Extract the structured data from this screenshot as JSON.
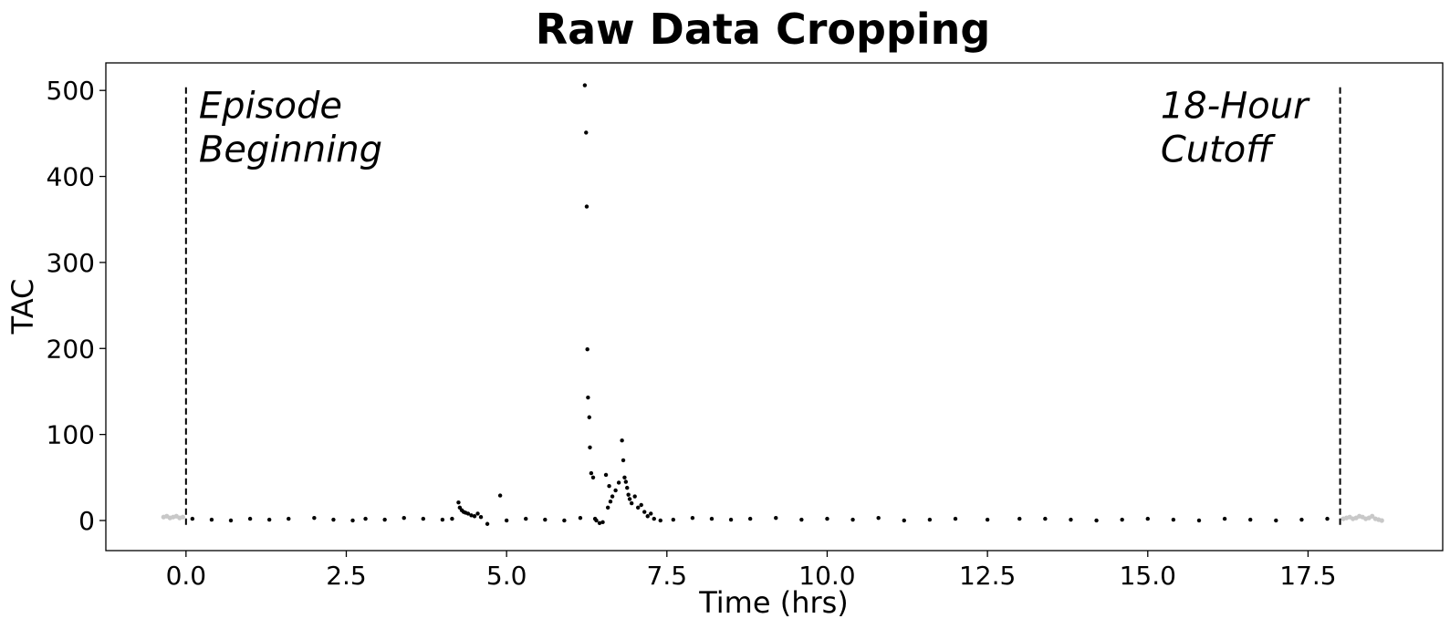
{
  "chart_data": {
    "type": "scatter",
    "title": "Raw Data Cropping",
    "xlabel": "Time (hrs)",
    "ylabel": "TAC",
    "xlim": [
      -1.25,
      19.6
    ],
    "ylim": [
      -35,
      532
    ],
    "xticks": [
      0.0,
      2.5,
      5.0,
      7.5,
      10.0,
      12.5,
      15.0,
      17.5
    ],
    "xtick_labels": [
      "0.0",
      "2.5",
      "5.0",
      "7.5",
      "10.0",
      "12.5",
      "15.0",
      "17.5"
    ],
    "yticks": [
      0,
      100,
      200,
      300,
      400,
      500
    ],
    "ytick_labels": [
      "0",
      "100",
      "200",
      "300",
      "400",
      "500"
    ],
    "grid": false,
    "colors": {
      "kept": "#000000",
      "cropped": "#c8c8c8",
      "cutoff_line": "#000000"
    },
    "vertical_lines": [
      {
        "x": 0.0,
        "y_range": [
          -5,
          505
        ],
        "style": "dashed"
      },
      {
        "x": 18.0,
        "y_range": [
          -5,
          505
        ],
        "style": "dashed"
      }
    ],
    "annotations": [
      {
        "lines": [
          "Episode",
          "Beginning"
        ],
        "x": 0.2,
        "y": 468
      },
      {
        "lines": [
          "18-Hour",
          "Cutoff"
        ],
        "x": 15.2,
        "y": 468
      }
    ],
    "series": [
      {
        "role": "cropped",
        "x": [
          -0.35,
          -0.3,
          -0.25,
          -0.2,
          -0.15,
          -0.1,
          -0.05,
          18.05,
          18.1,
          18.15,
          18.2,
          18.25,
          18.3,
          18.35,
          18.4,
          18.45,
          18.5,
          18.55,
          18.6,
          18.65
        ],
        "y": [
          4,
          5,
          3,
          4,
          5,
          3,
          4,
          2,
          3,
          4,
          2,
          3,
          5,
          4,
          2,
          3,
          5,
          2,
          1,
          0
        ]
      },
      {
        "role": "kept",
        "x": [
          0.1,
          0.4,
          0.7,
          1.0,
          1.3,
          1.6,
          2.0,
          2.3,
          2.6,
          2.8,
          3.1,
          3.4,
          3.7,
          4.0,
          4.15,
          4.25,
          4.27,
          4.3,
          4.33,
          4.36,
          4.4,
          4.45,
          4.5,
          4.55,
          4.6,
          4.7,
          4.9,
          5.0,
          5.3,
          5.6,
          5.9,
          6.15,
          6.22,
          6.24,
          6.25,
          6.26,
          6.27,
          6.29,
          6.3,
          6.32,
          6.35,
          6.38,
          6.4,
          6.45,
          6.5,
          6.55,
          6.58,
          6.6,
          6.62,
          6.65,
          6.7,
          6.75,
          6.8,
          6.82,
          6.84,
          6.86,
          6.88,
          6.9,
          6.92,
          6.95,
          7.0,
          7.05,
          7.1,
          7.15,
          7.2,
          7.25,
          7.3,
          7.4,
          7.6,
          7.9,
          8.2,
          8.5,
          8.8,
          9.2,
          9.6,
          10.0,
          10.4,
          10.8,
          11.2,
          11.6,
          12.0,
          12.5,
          13.0,
          13.4,
          13.8,
          14.2,
          14.6,
          15.0,
          15.4,
          15.8,
          16.2,
          16.6,
          17.0,
          17.4,
          17.8
        ],
        "y": [
          2,
          1,
          0,
          2,
          1,
          2,
          3,
          1,
          0,
          2,
          1,
          3,
          2,
          1,
          2,
          21,
          15,
          12,
          10,
          9,
          8,
          6,
          5,
          8,
          4,
          -4,
          29,
          0,
          2,
          1,
          0,
          3,
          506,
          451,
          365,
          199,
          143,
          120,
          85,
          55,
          50,
          2,
          0,
          -3,
          -2,
          53,
          15,
          40,
          22,
          28,
          35,
          44,
          93,
          70,
          50,
          45,
          38,
          30,
          25,
          20,
          28,
          15,
          18,
          10,
          5,
          8,
          2,
          0,
          1,
          3,
          2,
          1,
          2,
          3,
          1,
          2,
          1,
          3,
          0,
          1,
          2,
          1,
          2,
          2,
          1,
          0,
          1,
          2,
          1,
          0,
          2,
          1,
          0,
          1,
          2
        ]
      }
    ]
  }
}
